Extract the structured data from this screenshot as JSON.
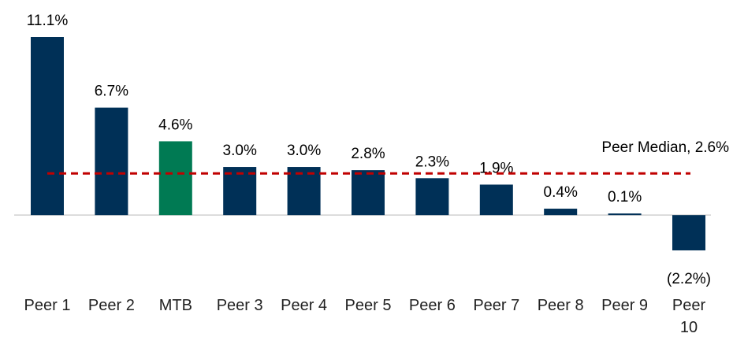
{
  "chart_data": {
    "type": "bar",
    "categories": [
      "Peer 1",
      "Peer 2",
      "MTB",
      "Peer 3",
      "Peer 4",
      "Peer 5",
      "Peer 6",
      "Peer 7",
      "Peer 8",
      "Peer 9",
      "Peer 10"
    ],
    "values": [
      11.1,
      6.7,
      4.6,
      3.0,
      3.0,
      2.8,
      2.3,
      1.9,
      0.4,
      0.1,
      -2.2
    ],
    "value_labels": [
      "11.1%",
      "6.7%",
      "4.6%",
      "3.0%",
      "3.0%",
      "2.8%",
      "2.3%",
      "1.9%",
      "0.4%",
      "0.1%",
      "(2.2%)"
    ],
    "colors": [
      "#003057",
      "#003057",
      "#007a53",
      "#003057",
      "#003057",
      "#003057",
      "#003057",
      "#003057",
      "#003057",
      "#003057",
      "#003057"
    ],
    "median": {
      "label": "Peer Median, 2.6%",
      "value": 2.6,
      "color": "#c00000"
    }
  }
}
